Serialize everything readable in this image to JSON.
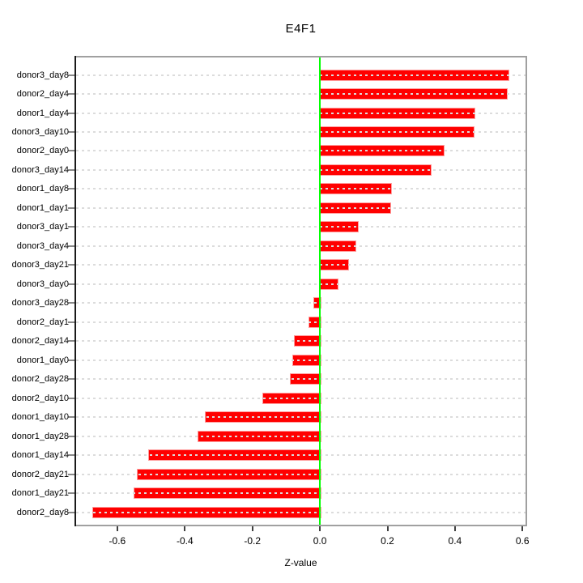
{
  "chart_data": {
    "type": "bar",
    "orientation": "horizontal",
    "title": "E4F1",
    "xlabel": "Z-value",
    "ylabel": "",
    "legend": "none",
    "grid": "horizontal-dashed",
    "categories": [
      "donor3_day8",
      "donor2_day4",
      "donor1_day4",
      "donor3_day10",
      "donor2_day0",
      "donor3_day14",
      "donor1_day8",
      "donor1_day1",
      "donor3_day1",
      "donor3_day4",
      "donor3_day21",
      "donor3_day0",
      "donor3_day28",
      "donor2_day1",
      "donor2_day14",
      "donor1_day0",
      "donor2_day28",
      "donor2_day10",
      "donor1_day10",
      "donor1_day28",
      "donor1_day14",
      "donor2_day21",
      "donor1_day21",
      "donor2_day8"
    ],
    "values": [
      0.557,
      0.552,
      0.456,
      0.452,
      0.364,
      0.325,
      0.209,
      0.207,
      0.11,
      0.102,
      0.082,
      0.05,
      -0.02,
      -0.034,
      -0.076,
      -0.082,
      -0.088,
      -0.17,
      -0.34,
      -0.362,
      -0.509,
      -0.542,
      -0.551,
      -0.674
    ],
    "xlim": [
      -0.722,
      0.609
    ],
    "xticks": [
      -0.6,
      -0.4,
      -0.2,
      0.0,
      0.2,
      0.4,
      0.6
    ],
    "xtick_labels": [
      "-0.6",
      "-0.4",
      "-0.2",
      "0.0",
      "0.2",
      "0.4",
      "0.6"
    ],
    "zero_line_x": 0.0,
    "colors": {
      "bar_fill": "#FF0000",
      "bar_border": "#FF9D9D",
      "zero_line": "#00FF00",
      "grid_line": "#DCDCDC",
      "box_border": "#A0A0A0",
      "y_axis_line": "#1A1A1A",
      "text": "#000000",
      "background": "#FFFFFF"
    }
  }
}
